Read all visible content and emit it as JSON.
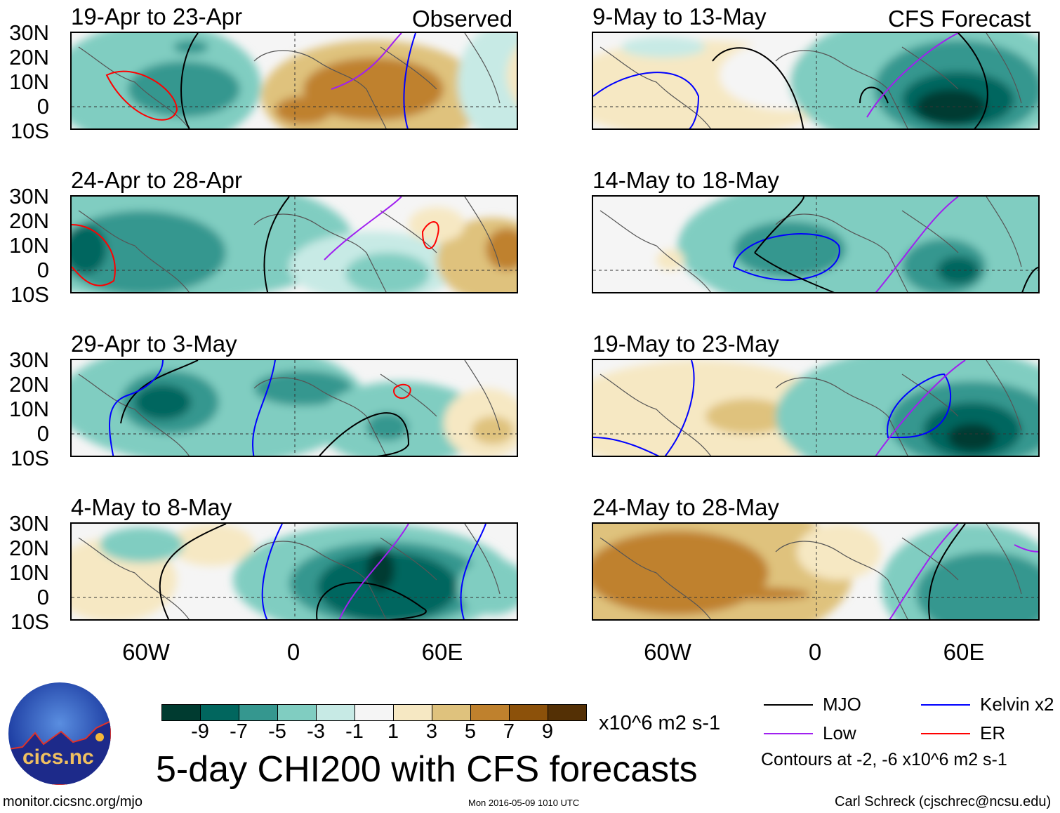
{
  "headers": {
    "observed": "Observed",
    "forecast": "CFS Forecast"
  },
  "panels": {
    "left": [
      {
        "title": "19-Apr to 23-Apr"
      },
      {
        "title": "24-Apr to 28-Apr"
      },
      {
        "title": "29-Apr to 3-May"
      },
      {
        "title": "4-May to 8-May"
      }
    ],
    "right": [
      {
        "title": "9-May to 13-May"
      },
      {
        "title": "14-May to 18-May"
      },
      {
        "title": "19-May to 23-May"
      },
      {
        "title": "24-May to 28-May"
      }
    ]
  },
  "lat_labels": [
    "30N",
    "20N",
    "10N",
    "0",
    "10S"
  ],
  "lon_labels": [
    "60W",
    "0",
    "60E"
  ],
  "colorbar": {
    "colors": [
      "#003b30",
      "#01665e",
      "#35978f",
      "#80cdc1",
      "#c7eae5",
      "#f5f5f5",
      "#f6e8c3",
      "#dfc27d",
      "#bf812d",
      "#8c510a",
      "#543005"
    ],
    "labels": [
      "-9",
      "-7",
      "-5",
      "-3",
      "-1",
      "1",
      "3",
      "5",
      "7",
      "9"
    ],
    "units": "x10^6 m2 s-1"
  },
  "title": "5-day CHI200 with CFS forecasts",
  "legend": {
    "items": [
      {
        "label": "MJO",
        "color": "#000000"
      },
      {
        "label": "Kelvin x2",
        "color": "#0000ff"
      },
      {
        "label": "Low",
        "color": "#a020f0"
      },
      {
        "label": "ER",
        "color": "#ff0000"
      }
    ],
    "note": "Contours at -2, -6 x10^6 m2 s-1"
  },
  "logo": {
    "text": "cics.nc",
    "ring_text": "Cooperative Institute for Climate and Satellites"
  },
  "footer": {
    "url": "monitor.cicsnc.org/mjo",
    "timestamp": "Mon 2016-05-09 1010 UTC",
    "credit": "Carl Schreck (cjschrec@ncsu.edu)"
  }
}
